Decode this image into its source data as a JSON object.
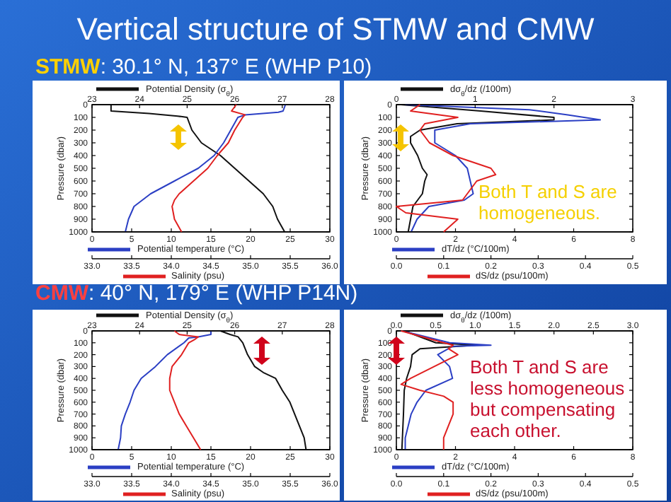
{
  "chart_data": [
    {
      "type": "line",
      "title": "Vertical structure of STMW and CMW",
      "subtitle": "STMW: 30.1° N, 137° E (WHP P10)",
      "ylabel": "Pressure (dbar)",
      "xlabel": "Potential temperature (°C)",
      "x2label": "Potential Density (σ$_{θ}$)",
      "ylim": [
        1000,
        0
      ],
      "yticks": [
        0,
        100,
        200,
        300,
        400,
        500,
        600,
        700,
        800,
        900,
        1000
      ],
      "xlim": [
        0,
        30
      ],
      "xticks": [
        0,
        5,
        10,
        15,
        20,
        25,
        30
      ],
      "x2lim": [
        23,
        28
      ],
      "x2ticks": [
        23,
        24,
        25,
        26,
        27,
        28
      ],
      "series": [
        {
          "axis": "x2",
          "color": "#111111",
          "x": [
            23.4,
            23.4,
            24.2,
            24.8,
            25.0,
            25.1,
            25.3,
            25.5,
            25.7,
            26.0,
            26.3,
            26.6,
            26.8,
            26.9,
            27.05
          ],
          "values": [
            0,
            50,
            70,
            90,
            100,
            200,
            300,
            350,
            400,
            500,
            600,
            700,
            800,
            900,
            1000
          ]
        },
        {
          "color": "#2b3fc4",
          "x": [
            24.4,
            24.1,
            23.5,
            19.3,
            18.4,
            17.5,
            16.6,
            15.4,
            13.4,
            10.4,
            7.4,
            5.3,
            4.6,
            4.2
          ],
          "values": [
            0,
            50,
            60,
            80,
            100,
            200,
            300,
            400,
            500,
            600,
            700,
            800,
            900,
            1000
          ]
        }
      ]
    },
    {
      "type": "line",
      "tick_labels": "x",
      "xlabel": "Salinity (psu)",
      "ylim": [
        1000,
        0
      ],
      "xlim": [
        33,
        36
      ],
      "xticks": [
        {
          "value": 33,
          "label": "33.0"
        },
        {
          "value": 33.5,
          "label": "33.5"
        },
        {
          "value": 34,
          "label": "34.0"
        },
        {
          "value": 34.5,
          "label": "34.5"
        },
        {
          "value": 35,
          "label": "35.0"
        },
        {
          "value": 35.5,
          "label": "35.5"
        },
        {
          "value": 36,
          "label": "36.0"
        }
      ],
      "series": [
        {
          "color": "#e02020",
          "x": [
            34.82,
            34.76,
            34.93,
            34.9,
            34.8,
            34.72,
            34.58,
            34.46,
            34.28,
            34.1,
            34.04,
            34.01,
            34.04,
            34.13
          ],
          "values": [
            0,
            50,
            80,
            100,
            200,
            300,
            400,
            500,
            600,
            700,
            750,
            800,
            900,
            1000
          ]
        }
      ]
    },
    {
      "type": "line",
      "ylabel": "Pressure (dbar)",
      "xlabel": "dT/dz (°C/100m)",
      "x2label": "dσ$_{θ}$/dz (/100m)",
      "ylim": [
        1000,
        0
      ],
      "yticks": [
        0,
        100,
        200,
        300,
        400,
        500,
        600,
        700,
        800,
        900,
        1000
      ],
      "xlim": [
        0,
        8
      ],
      "xticks": [
        0,
        2,
        4,
        6,
        8
      ],
      "x2lim": [
        0,
        3
      ],
      "x2ticks": [
        0,
        1,
        2,
        3
      ],
      "annotations": [
        "Both T and S are homogeneous."
      ],
      "series": [
        {
          "axis": "x2",
          "color": "#111111",
          "x": [
            0.06,
            1.07,
            2.0,
            2.0,
            0.77,
            0.3,
            0.18,
            0.18,
            0.27,
            0.33,
            0.39,
            0.36,
            0.33,
            0.21,
            0.18,
            0.15
          ],
          "values": [
            0,
            50,
            100,
            120,
            150,
            200,
            250,
            300,
            400,
            500,
            550,
            600,
            700,
            800,
            900,
            1000
          ]
        },
        {
          "color": "#2b3fc4",
          "x": [
            0.3,
            4.5,
            5.8,
            6.9,
            2.5,
            1.3,
            1.3,
            2.0,
            2.4,
            2.5,
            2.6,
            2.3,
            1.1,
            0.7,
            0.5
          ],
          "values": [
            0,
            40,
            80,
            120,
            150,
            200,
            300,
            400,
            500,
            600,
            700,
            750,
            800,
            900,
            1000
          ]
        }
      ]
    },
    {
      "type": "line",
      "tick_labels": "x",
      "xlabel": "dS/dz (psu/100m)",
      "ylim": [
        1000,
        0
      ],
      "xlim": [
        0,
        0.5
      ],
      "xticks": [
        {
          "value": 0,
          "label": "0.0"
        },
        0.1,
        0.2,
        0.3,
        0.4,
        0.5
      ],
      "series": [
        {
          "color": "#e02020",
          "x": [
            0.05,
            0.03,
            0.13,
            0.06,
            0.05,
            0.07,
            0.12,
            0.2,
            0.21,
            0.17,
            0.15,
            0.14,
            0.0,
            0.02,
            0.13,
            0.1
          ],
          "values": [
            0,
            50,
            100,
            150,
            200,
            300,
            400,
            500,
            550,
            600,
            700,
            750,
            800,
            850,
            900,
            1000
          ]
        }
      ]
    },
    {
      "type": "line",
      "subtitle": "CMW: 40° N, 179° E (WHP P14N)",
      "ylabel": "Pressure (dbar)",
      "xlabel": "Potential temperature (°C)",
      "x2label": "Potential Density (σ$_{θ}$)",
      "ylim": [
        1000,
        0
      ],
      "yticks": [
        0,
        100,
        200,
        300,
        400,
        500,
        600,
        700,
        800,
        900,
        1000
      ],
      "xlim": [
        0,
        30
      ],
      "xticks": [
        0,
        5,
        10,
        15,
        20,
        25,
        30
      ],
      "x2lim": [
        23,
        28
      ],
      "x2ticks": [
        23,
        24,
        25,
        26,
        27,
        28
      ],
      "series": [
        {
          "axis": "x2",
          "color": "#111111",
          "x": [
            25.7,
            25.9,
            26.07,
            26.17,
            26.27,
            26.42,
            26.6,
            26.86,
            27.0,
            27.16,
            27.26,
            27.36,
            27.46,
            27.5
          ],
          "values": [
            0,
            30,
            50,
            100,
            200,
            300,
            350,
            400,
            500,
            600,
            700,
            800,
            900,
            1000
          ]
        },
        {
          "color": "#2b3fc4",
          "x": [
            15.0,
            15.0,
            13.4,
            12.2,
            11.6,
            9.5,
            8.0,
            6.2,
            5.3,
            4.8,
            4.2,
            3.7,
            3.6,
            3.3
          ],
          "values": [
            0,
            30,
            50,
            60,
            100,
            200,
            300,
            400,
            500,
            600,
            700,
            800,
            900,
            1000
          ]
        }
      ]
    },
    {
      "type": "line",
      "tick_labels": "x",
      "xlabel": "Salinity (psu)",
      "ylim": [
        1000,
        0
      ],
      "xlim": [
        33,
        36
      ],
      "xticks": [
        {
          "value": 33,
          "label": "33.0"
        },
        {
          "value": 33.5,
          "label": "33.5"
        },
        {
          "value": 34,
          "label": "34.0"
        },
        {
          "value": 34.5,
          "label": "34.5"
        },
        {
          "value": 35,
          "label": "35.0"
        },
        {
          "value": 35.5,
          "label": "35.5"
        },
        {
          "value": 36,
          "label": "36.0"
        }
      ],
      "series": [
        {
          "color": "#e02020",
          "x": [
            34.04,
            34.1,
            34.34,
            34.3,
            34.22,
            34.13,
            34.01,
            33.98,
            33.98,
            34.04,
            34.1,
            34.19,
            34.28,
            34.37
          ],
          "values": [
            0,
            30,
            50,
            70,
            100,
            200,
            300,
            400,
            500,
            600,
            700,
            800,
            900,
            1000
          ]
        }
      ]
    },
    {
      "type": "line",
      "ylabel": "Pressure (dbar)",
      "xlabel": "dT/dz (°C/100m)",
      "x2label": "dσ$_{θ}$/dz (/100m)",
      "ylim": [
        1000,
        0
      ],
      "yticks": [
        0,
        100,
        200,
        300,
        400,
        500,
        600,
        700,
        800,
        900,
        1000
      ],
      "xlim": [
        0,
        8
      ],
      "xticks": [
        0,
        2,
        4,
        6,
        8
      ],
      "x2lim": [
        0,
        3
      ],
      "x2ticks": [
        {
          "value": 0,
          "label": "0.0"
        },
        0.5,
        {
          "value": 1,
          "label": "1.0"
        },
        1.5,
        {
          "value": 2,
          "label": "2.0"
        },
        2.5,
        {
          "value": 3,
          "label": "3.0"
        }
      ],
      "annotations": [
        "Both T and S are less homogeneous but compensating each other."
      ],
      "series": [
        {
          "axis": "x2",
          "color": "#111111",
          "x": [
            0.1,
            0.5,
            1.0,
            0.3,
            0.2,
            0.18,
            0.13,
            0.1,
            0.09,
            0.08,
            0.07
          ],
          "values": [
            0,
            100,
            120,
            150,
            200,
            300,
            400,
            500,
            700,
            850,
            1000
          ]
        },
        {
          "color": "#2b3fc4",
          "x": [
            0.2,
            1.8,
            3.2,
            1.9,
            1.4,
            1.8,
            1.9,
            1.0,
            0.7,
            0.5,
            0.4,
            0.3,
            0.3
          ],
          "values": [
            0,
            100,
            120,
            130,
            200,
            300,
            400,
            500,
            600,
            700,
            800,
            900,
            1000
          ]
        }
      ]
    },
    {
      "type": "line",
      "tick_labels": "x",
      "xlabel": "dS/dz (psu/100m)",
      "ylim": [
        1000,
        0
      ],
      "xlim": [
        0,
        0.5
      ],
      "xticks": [
        {
          "value": 0,
          "label": "0.0"
        },
        0.1,
        0.2,
        0.3,
        0.4,
        0.5
      ],
      "series": [
        {
          "color": "#e02020",
          "x": [
            0.01,
            0.1,
            0.12,
            0.11,
            0.13,
            0.08,
            0.03,
            0.01,
            0.05,
            0.1,
            0.12,
            0.12,
            0.11,
            0.1,
            0.1
          ],
          "values": [
            0,
            100,
            120,
            150,
            200,
            300,
            400,
            450,
            500,
            550,
            600,
            700,
            800,
            900,
            1000
          ]
        }
      ]
    }
  ]
}
